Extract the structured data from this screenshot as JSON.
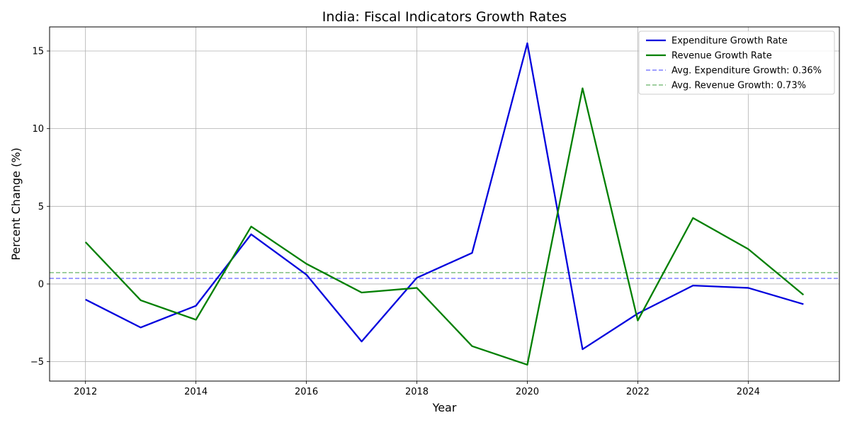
{
  "chart_data": {
    "type": "line",
    "title": "India: Fiscal Indicators Growth Rates",
    "xlabel": "Year",
    "ylabel": "Percent Change (%)",
    "x": [
      2012,
      2013,
      2014,
      2015,
      2016,
      2017,
      2018,
      2019,
      2020,
      2021,
      2022,
      2023,
      2024,
      2025
    ],
    "xlim": [
      2011.35,
      2025.65
    ],
    "ylim": [
      -6.25,
      16.55
    ],
    "x_ticks": [
      2012,
      2014,
      2016,
      2018,
      2020,
      2022,
      2024
    ],
    "y_ticks": [
      -5,
      0,
      5,
      10,
      15
    ],
    "y_tick_labels": [
      "−5",
      "0",
      "5",
      "10",
      "15"
    ],
    "grid": true,
    "legend_position": "top-right",
    "series": [
      {
        "name": "Expenditure Growth Rate",
        "color": "#0000dd",
        "style": "solid",
        "values": [
          -1.0,
          -2.8,
          -1.4,
          3.2,
          0.6,
          -3.7,
          0.4,
          2.0,
          15.5,
          -4.2,
          -1.9,
          -0.1,
          -0.25,
          -1.3
        ]
      },
      {
        "name": "Revenue Growth Rate",
        "color": "#007f00",
        "style": "solid",
        "values": [
          2.7,
          -1.05,
          -2.3,
          3.7,
          1.3,
          -0.55,
          -0.25,
          -4.0,
          -5.2,
          12.6,
          -2.35,
          4.25,
          2.25,
          -0.7
        ]
      }
    ],
    "reference_lines": [
      {
        "name": "Avg. Expenditure Growth: 0.36%",
        "value": 0.36,
        "color": "#0000ff",
        "style": "dashed"
      },
      {
        "name": "Avg. Revenue Growth: 0.73%",
        "value": 0.73,
        "color": "#008000",
        "style": "dashed"
      }
    ]
  }
}
